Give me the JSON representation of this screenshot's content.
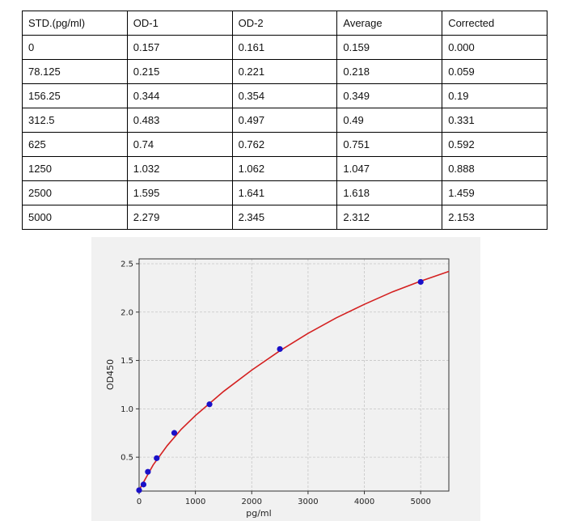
{
  "table": {
    "headers": [
      "STD.(pg/ml)",
      "OD-1",
      "OD-2",
      "Average",
      "Corrected"
    ],
    "rows": [
      [
        "0",
        "0.157",
        "0.161",
        "0.159",
        "0.000"
      ],
      [
        "78.125",
        "0.215",
        "0.221",
        "0.218",
        "0.059"
      ],
      [
        "156.25",
        "0.344",
        "0.354",
        "0.349",
        "0.19"
      ],
      [
        "312.5",
        "0.483",
        "0.497",
        "0.49",
        "0.331"
      ],
      [
        "625",
        "0.74",
        "0.762",
        "0.751",
        "0.592"
      ],
      [
        "1250",
        "1.032",
        "1.062",
        "1.047",
        "0.888"
      ],
      [
        "2500",
        "1.595",
        "1.641",
        "1.618",
        "1.459"
      ],
      [
        "5000",
        "2.279",
        "2.345",
        "2.312",
        "2.153"
      ]
    ]
  },
  "chart_data": {
    "type": "scatter",
    "xlabel": "pg/ml",
    "ylabel": "OD450",
    "xlim": [
      0,
      5500
    ],
    "ylim": [
      0.15,
      2.55
    ],
    "xticks": [
      0,
      1000,
      2000,
      3000,
      4000,
      5000
    ],
    "yticks": [
      0.5,
      1.0,
      1.5,
      2.0,
      2.5
    ],
    "ytick_labels": [
      "0.5",
      "1.0",
      "1.5",
      "2.0",
      "2.5"
    ],
    "grid": true,
    "points": {
      "x": [
        0,
        78.125,
        156.25,
        312.5,
        625,
        1250,
        2500,
        5000
      ],
      "y": [
        0.159,
        0.218,
        0.349,
        0.49,
        0.751,
        1.047,
        1.618,
        2.312
      ]
    },
    "fit_curve": {
      "x": [
        0,
        250,
        500,
        750,
        1000,
        1500,
        2000,
        2500,
        3000,
        3500,
        4000,
        4500,
        5000,
        5500
      ],
      "y": [
        0.16,
        0.42,
        0.62,
        0.79,
        0.93,
        1.18,
        1.4,
        1.6,
        1.78,
        1.94,
        2.08,
        2.21,
        2.32,
        2.42
      ]
    },
    "colors": {
      "point": "#1a10c8",
      "curve": "#d42020",
      "grid": "#c6c6c6"
    }
  }
}
